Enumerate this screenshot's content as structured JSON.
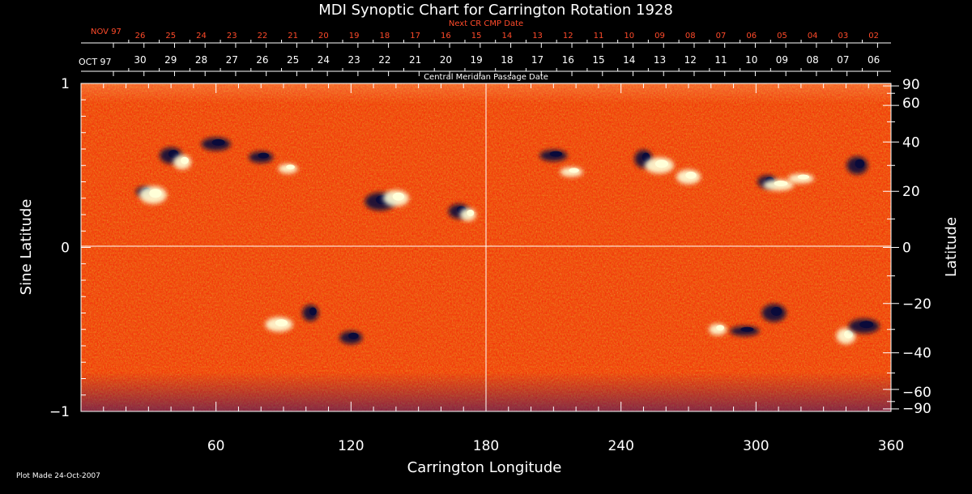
{
  "chart_data": {
    "type": "heatmap",
    "title": "MDI Synoptic Chart for Carrington Rotation 1928",
    "xlabel": "Carrington Longitude",
    "ylabel_left": "Sine Latitude",
    "ylabel_right": "Latitude",
    "xlim": [
      0,
      360
    ],
    "ylim": [
      -1,
      1
    ],
    "x_ticks": [
      "60",
      "120",
      "180",
      "240",
      "300",
      "360"
    ],
    "x_tick_values": [
      60,
      120,
      180,
      240,
      300,
      360
    ],
    "y_left_ticks": [
      "1",
      "0",
      "−1"
    ],
    "y_left_tick_values": [
      1,
      0,
      -1
    ],
    "y_right_ticks": [
      "90",
      "60",
      "40",
      "20",
      "0",
      "−20",
      "−40",
      "−60",
      "−90"
    ],
    "y_right_tick_values": [
      90,
      60,
      40,
      20,
      0,
      -20,
      -40,
      -60,
      -90
    ],
    "top_axis_red": {
      "label": "Next CR CMP Date",
      "month_label": "NOV 97",
      "days": [
        "26",
        "25",
        "24",
        "23",
        "22",
        "21",
        "20",
        "19",
        "18",
        "17",
        "16",
        "15",
        "14",
        "13",
        "12",
        "11",
        "10",
        "09",
        "08",
        "07",
        "06",
        "05",
        "04",
        "03",
        "02"
      ]
    },
    "top_axis_white": {
      "label": "Central Meridian Passage Date",
      "month_label": "OCT 97",
      "days": [
        "30",
        "29",
        "28",
        "27",
        "26",
        "25",
        "24",
        "23",
        "22",
        "21",
        "20",
        "19",
        "18",
        "17",
        "16",
        "15",
        "14",
        "13",
        "12",
        "11",
        "10",
        "09",
        "08",
        "07",
        "06"
      ]
    },
    "features": [
      {
        "lon": 28,
        "sinlat": 0.34,
        "polarity": "negative"
      },
      {
        "lon": 32,
        "sinlat": 0.32,
        "polarity": "positive"
      },
      {
        "lon": 40,
        "sinlat": 0.56,
        "polarity": "negative"
      },
      {
        "lon": 45,
        "sinlat": 0.52,
        "polarity": "positive"
      },
      {
        "lon": 60,
        "sinlat": 0.63,
        "polarity": "negative"
      },
      {
        "lon": 80,
        "sinlat": 0.55,
        "polarity": "negative"
      },
      {
        "lon": 92,
        "sinlat": 0.48,
        "polarity": "positive"
      },
      {
        "lon": 133,
        "sinlat": 0.28,
        "polarity": "negative"
      },
      {
        "lon": 140,
        "sinlat": 0.3,
        "polarity": "positive"
      },
      {
        "lon": 168,
        "sinlat": 0.22,
        "polarity": "negative"
      },
      {
        "lon": 172,
        "sinlat": 0.2,
        "polarity": "positive"
      },
      {
        "lon": 210,
        "sinlat": 0.56,
        "polarity": "negative"
      },
      {
        "lon": 218,
        "sinlat": 0.46,
        "polarity": "positive"
      },
      {
        "lon": 250,
        "sinlat": 0.54,
        "polarity": "negative"
      },
      {
        "lon": 257,
        "sinlat": 0.5,
        "polarity": "positive"
      },
      {
        "lon": 270,
        "sinlat": 0.43,
        "polarity": "positive"
      },
      {
        "lon": 305,
        "sinlat": 0.4,
        "polarity": "negative"
      },
      {
        "lon": 310,
        "sinlat": 0.38,
        "polarity": "positive"
      },
      {
        "lon": 320,
        "sinlat": 0.42,
        "polarity": "positive"
      },
      {
        "lon": 345,
        "sinlat": 0.5,
        "polarity": "negative"
      },
      {
        "lon": 102,
        "sinlat": -0.4,
        "polarity": "negative"
      },
      {
        "lon": 88,
        "sinlat": -0.47,
        "polarity": "positive"
      },
      {
        "lon": 120,
        "sinlat": -0.55,
        "polarity": "negative"
      },
      {
        "lon": 283,
        "sinlat": -0.5,
        "polarity": "positive"
      },
      {
        "lon": 295,
        "sinlat": -0.51,
        "polarity": "negative"
      },
      {
        "lon": 308,
        "sinlat": -0.4,
        "polarity": "negative"
      },
      {
        "lon": 340,
        "sinlat": -0.54,
        "polarity": "positive"
      },
      {
        "lon": 348,
        "sinlat": -0.48,
        "polarity": "negative"
      }
    ],
    "colors": {
      "background_field": "#ee6a14",
      "positive": "#ffffd8",
      "negative": "#0a0a3a",
      "axis": "#ffffff",
      "red_axis": "#ff4a2a"
    },
    "footer": "Plot Made 24-Oct-2007"
  }
}
